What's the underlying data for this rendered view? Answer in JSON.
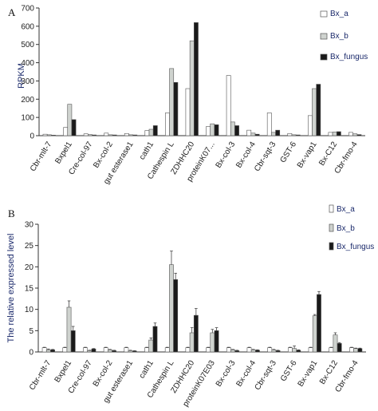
{
  "chart_data": [
    {
      "panel": "A",
      "type": "bar",
      "ylabel": "RPKM",
      "ylim": [
        0,
        700
      ],
      "yticks": [
        0,
        100,
        200,
        300,
        400,
        500,
        600,
        700
      ],
      "categories": [
        "Cbr-mlt-7",
        "Bxpel1",
        "Cre-col-97",
        "Bx-col-2",
        "gut esterase1",
        "cath1",
        "Cathespin L",
        "ZDHHC20",
        "proteinK07...",
        "Bx-col-3",
        "Bx-col-4",
        "Cbr-sqt-3",
        "GST-6",
        "Bx-vap1",
        "Bx-C12",
        "Cbr-fmo-4"
      ],
      "series": [
        {
          "name": "Bx_a",
          "color": "#ffffff",
          "values": [
            8,
            45,
            10,
            14,
            12,
            28,
            125,
            258,
            50,
            330,
            30,
            125,
            12,
            110,
            18,
            18
          ]
        },
        {
          "name": "Bx_b",
          "color": "#cfd3cf",
          "values": [
            5,
            172,
            6,
            5,
            5,
            35,
            368,
            520,
            65,
            75,
            14,
            18,
            5,
            258,
            20,
            10
          ]
        },
        {
          "name": "Bx_fungus",
          "color": "#1a1a1a",
          "values": [
            3,
            88,
            4,
            4,
            4,
            55,
            292,
            620,
            60,
            55,
            8,
            30,
            4,
            282,
            22,
            6
          ]
        }
      ],
      "legend_position": "top-right"
    },
    {
      "panel": "B",
      "type": "bar",
      "ylabel": "The relative expressed level",
      "ylim": [
        0,
        30
      ],
      "yticks": [
        0,
        5,
        10,
        15,
        20,
        25,
        30
      ],
      "categories": [
        "Cbr-mlt-7",
        "Bxpel1",
        "Cre-col-97",
        "Bx-col-2",
        "gut esterase1",
        "cath1",
        "Cathespin L",
        "ZDHHC20",
        "proteinK07E03",
        "Bx-col-3",
        "Bx-col-4",
        "Cbr-sqt-3",
        "GST-6",
        "Bx-vap1",
        "Bx-C12",
        "Cbr-fmo-4"
      ],
      "series": [
        {
          "name": "Bx_a",
          "color": "#ffffff",
          "values": [
            1.0,
            1.0,
            1.0,
            1.0,
            1.0,
            1.0,
            1.0,
            1.0,
            1.0,
            1.0,
            1.0,
            1.0,
            1.0,
            1.0,
            1.0,
            1.0
          ],
          "errors": [
            0.1,
            0.1,
            0.1,
            0.1,
            0.1,
            0.1,
            0.1,
            0.1,
            0.1,
            0.1,
            0.1,
            0.1,
            0.1,
            0.1,
            0.1,
            0.1
          ]
        },
        {
          "name": "Bx_b",
          "color": "#cfd3cf",
          "values": [
            0.5,
            10.5,
            0.3,
            0.5,
            0.3,
            2.8,
            20.5,
            4.5,
            4.5,
            0.5,
            0.5,
            0.5,
            0.8,
            8.5,
            4.0,
            0.8
          ],
          "errors": [
            0.2,
            1.5,
            0.1,
            0.1,
            0.1,
            0.5,
            3.2,
            1.2,
            0.8,
            0.1,
            0.1,
            0.1,
            0.6,
            0.3,
            0.5,
            0.1
          ]
        },
        {
          "name": "Bx_fungus",
          "color": "#1a1a1a",
          "values": [
            0.5,
            5.0,
            0.7,
            0.3,
            0.2,
            6.0,
            17.0,
            8.6,
            5.0,
            0.3,
            0.4,
            0.3,
            0.4,
            13.5,
            2.0,
            0.8
          ],
          "errors": [
            0.1,
            1.0,
            0.1,
            0.1,
            0.1,
            0.8,
            1.5,
            1.6,
            0.7,
            0.1,
            0.1,
            0.1,
            0.1,
            0.7,
            0.2,
            0.1
          ]
        }
      ],
      "legend_position": "top-right"
    }
  ]
}
